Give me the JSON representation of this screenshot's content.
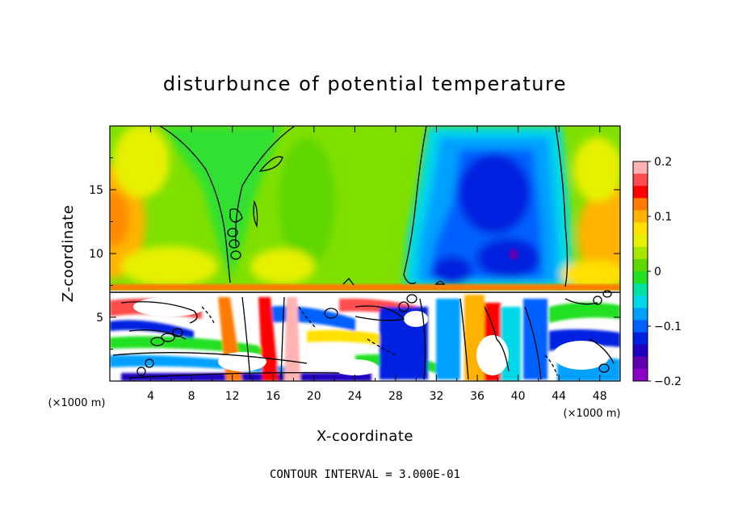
{
  "chart_data": {
    "type": "heatmap",
    "title": "disturbunce of potential temperature",
    "xlabel": "X-coordinate",
    "ylabel": "Z-coordinate",
    "x_unit": "(×1000 m)",
    "z_unit": "(×1000 m)",
    "x_range": [
      0,
      50
    ],
    "z_range": [
      0,
      20
    ],
    "x_ticks": [
      4,
      8,
      12,
      16,
      20,
      24,
      28,
      32,
      36,
      40,
      44,
      48
    ],
    "z_ticks": [
      5,
      10,
      15
    ],
    "colorbar": {
      "range": [
        -0.2,
        0.2
      ],
      "labels": [
        "0.2",
        "0.1",
        "0",
        "−0.1",
        "−0.2"
      ],
      "colors": [
        "#ffb3b3",
        "#ff4d4d",
        "#ff0000",
        "#ff7a00",
        "#ffb300",
        "#ffe000",
        "#e6f000",
        "#a8e600",
        "#5fd700",
        "#20e020",
        "#00e0a0",
        "#00d8e8",
        "#00a0ff",
        "#0060ff",
        "#0020e0",
        "#2000c0",
        "#6000b0",
        "#8a00c8"
      ]
    },
    "contour_interval": 0.3,
    "features": [
      {
        "region": "upper left",
        "x_range": [
          0,
          4
        ],
        "z_range": [
          10,
          16
        ],
        "value": 0.1
      },
      {
        "region": "upper column",
        "x_range": [
          30,
          44
        ],
        "z_range": [
          7.5,
          19.5
        ],
        "value": -0.15
      },
      {
        "region": "upper right",
        "x_range": [
          44,
          50
        ],
        "z_range": [
          8,
          14
        ],
        "value": 0.08
      },
      {
        "region": "lower layer",
        "x_range": [
          0,
          50
        ],
        "z_range": [
          0,
          7.3
        ],
        "value": "mixed ±0.2"
      }
    ]
  },
  "footer": {
    "contour_note": "CONTOUR INTERVAL = 3.000E-01"
  }
}
